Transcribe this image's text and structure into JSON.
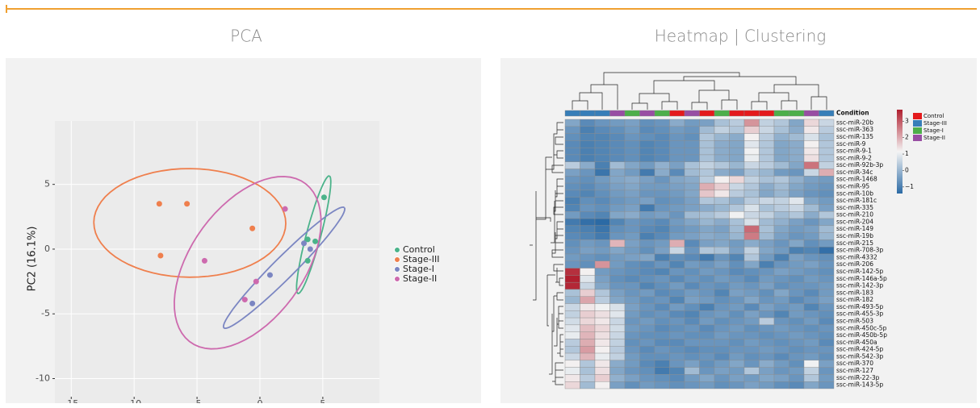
{
  "chart_data": [
    {
      "type": "scatter",
      "title": "PCA",
      "ylabel": "PC2 (16.1%)",
      "xlim": [
        -16.3,
        9.5
      ],
      "ylim": [
        -11.4,
        9.9
      ],
      "xticks": [
        -15,
        -10,
        -5,
        0,
        5
      ],
      "yticks": [
        -10,
        -5,
        0,
        5
      ],
      "grid": true,
      "legend": "right",
      "series": [
        {
          "name": "Control",
          "color": "#4bb38a",
          "x": [
            5.1,
            3.8,
            3.8,
            4.4
          ],
          "values": [
            4.0,
            -0.9,
            0.75,
            0.6
          ]
        },
        {
          "name": "Stage-III",
          "color": "#ef7f4d",
          "x": [
            -8.0,
            -5.8,
            -7.9,
            -0.6
          ],
          "values": [
            3.5,
            3.5,
            -0.5,
            1.6
          ]
        },
        {
          "name": "Stage-I",
          "color": "#7b86c2",
          "x": [
            3.5,
            4.0,
            0.8,
            -0.6
          ],
          "values": [
            0.45,
            0.0,
            -2.0,
            -4.2
          ]
        },
        {
          "name": "Stage-II",
          "color": "#cd6aae",
          "x": [
            2.0,
            -4.4,
            -0.3,
            -1.2
          ],
          "values": [
            3.1,
            -0.9,
            -2.5,
            -3.9
          ]
        }
      ]
    },
    {
      "type": "heatmap",
      "title": "Heatmap | Clustering",
      "annotation_title": "Condition",
      "conditions": [
        {
          "name": "Control",
          "color": "#e41a1c"
        },
        {
          "name": "Stage-III",
          "color": "#377eb8"
        },
        {
          "name": "Stage-I",
          "color": "#4daf4a"
        },
        {
          "name": "Stage-II",
          "color": "#984ea3"
        }
      ],
      "column_conditions": [
        "Stage-III",
        "Stage-III",
        "Stage-III",
        "Stage-II",
        "Stage-I",
        "Stage-II",
        "Stage-I",
        "Control",
        "Stage-II",
        "Control",
        "Stage-I",
        "Control",
        "Control",
        "Control",
        "Stage-I",
        "Stage-I",
        "Stage-II",
        "Stage-III"
      ],
      "colorscale": {
        "range": [
          -1.4,
          3.7
        ],
        "colors": [
          "#2b6aa5",
          "#f4f4f4",
          "#b01f2f"
        ]
      },
      "legend_ticks": [
        3,
        2,
        1,
        0,
        {
          "value": -1,
          "label": "−1"
        }
      ],
      "rows": [
        "ssc-miR-20b",
        "ssc-miR-363",
        "ssc-miR-135",
        "ssc-miR-9",
        "ssc-miR-9-1",
        "ssc-miR-9-2",
        "ssc-miR-92b-3p",
        "ssc-miR-34c",
        "ssc-miR-1468",
        "ssc-miR-95",
        "ssc-miR-10b",
        "ssc-miR-181c",
        "ssc-miR-335",
        "ssc-miR-210",
        "ssc-miR-204",
        "ssc-miR-149",
        "ssc-miR-19b",
        "ssc-miR-215",
        "ssc-miR-708-3p",
        "ssc-miR-4332",
        "ssc-miR-206",
        "ssc-miR-142-5p",
        "ssc-miR-146a-5p",
        "ssc-miR-142-3p",
        "ssc-miR-183",
        "ssc-miR-182",
        "ssc-miR-493-5p",
        "ssc-miR-455-3p",
        "ssc-miR-503",
        "ssc-miR-450c-5p",
        "ssc-miR-450b-5p",
        "ssc-miR-450a",
        "ssc-miR-424-5p",
        "ssc-miR-542-3p",
        "ssc-miR-370",
        "ssc-miR-127",
        "ssc-miR-22-3p",
        "ssc-miR-143-5p"
      ],
      "values": [
        [
          -0.3,
          -0.8,
          -0.6,
          -0.5,
          -0.4,
          -0.7,
          -0.6,
          -0.2,
          -0.5,
          -0.4,
          0.2,
          0.4,
          2.3,
          0.5,
          0.3,
          -0.3,
          1.5,
          0.6
        ],
        [
          -0.6,
          -1.0,
          -0.8,
          -0.7,
          -0.5,
          -0.8,
          -0.7,
          -0.5,
          -0.6,
          0.1,
          0.5,
          0.3,
          1.6,
          0.6,
          0.2,
          -0.2,
          1.3,
          0.4
        ],
        [
          -0.7,
          -0.9,
          -0.9,
          -0.8,
          -0.6,
          -0.7,
          -0.8,
          -0.6,
          -0.7,
          0.3,
          0.0,
          -0.2,
          1.2,
          0.4,
          -0.1,
          0.1,
          0.8,
          0.2
        ],
        [
          -0.8,
          -1.0,
          -0.9,
          -0.8,
          -0.7,
          -0.9,
          -0.8,
          -0.6,
          -0.6,
          0.2,
          -0.2,
          -0.3,
          0.9,
          0.3,
          -0.3,
          -0.2,
          1.2,
          0.3
        ],
        [
          -0.8,
          -1.0,
          -0.9,
          -0.8,
          -0.7,
          -0.9,
          -0.8,
          -0.6,
          -0.6,
          0.2,
          -0.2,
          -0.3,
          1.1,
          0.3,
          -0.3,
          -0.2,
          1.3,
          0.3
        ],
        [
          -0.8,
          -1.0,
          -0.9,
          -0.8,
          -0.7,
          -0.9,
          -0.8,
          -0.6,
          -0.6,
          0.2,
          -0.2,
          -0.3,
          1.0,
          0.3,
          -0.3,
          -0.2,
          1.4,
          0.3
        ],
        [
          0.4,
          -0.2,
          -1.0,
          0.1,
          -0.3,
          -0.5,
          -0.1,
          -0.4,
          0.2,
          0.5,
          0.3,
          0.0,
          0.6,
          0.4,
          0.1,
          -0.3,
          2.7,
          0.5
        ],
        [
          -0.4,
          -0.6,
          -1.2,
          -0.3,
          -0.5,
          -1.1,
          -0.2,
          -0.8,
          0.1,
          0.3,
          -0.2,
          -0.4,
          0.2,
          0.0,
          -0.5,
          -0.6,
          0.6,
          2.0
        ],
        [
          -0.6,
          -0.7,
          -0.5,
          -0.3,
          -0.2,
          -0.4,
          -0.6,
          -0.3,
          -0.2,
          0.4,
          1.2,
          1.5,
          0.5,
          0.2,
          0.3,
          -0.1,
          -0.4,
          -0.5
        ],
        [
          -0.7,
          -0.8,
          -0.6,
          -0.4,
          -0.3,
          -0.5,
          -0.5,
          -0.4,
          -0.3,
          2.0,
          1.6,
          0.6,
          0.3,
          -0.2,
          0.1,
          -0.3,
          -0.5,
          -0.6
        ],
        [
          -0.8,
          -0.9,
          -0.7,
          -0.5,
          -0.4,
          -0.6,
          -0.6,
          -0.5,
          -0.3,
          1.7,
          1.3,
          0.4,
          0.2,
          -0.3,
          0.0,
          -0.4,
          -0.6,
          -0.7
        ],
        [
          -1.0,
          -0.7,
          -0.8,
          -0.6,
          -0.5,
          -0.4,
          -0.7,
          -0.6,
          -0.4,
          0.3,
          0.2,
          -0.1,
          0.4,
          0.6,
          0.5,
          0.9,
          -0.3,
          -0.5
        ],
        [
          -0.9,
          -0.6,
          -0.7,
          -0.5,
          -0.4,
          -1.1,
          -0.6,
          -0.5,
          -0.4,
          -0.2,
          0.0,
          0.3,
          0.8,
          0.2,
          0.4,
          0.6,
          0.1,
          -0.4
        ],
        [
          -0.5,
          -0.8,
          -0.9,
          -0.3,
          -0.2,
          -0.5,
          -0.4,
          -0.6,
          0.1,
          0.2,
          0.4,
          1.1,
          0.6,
          0.5,
          0.1,
          0.3,
          -0.2,
          0.3
        ],
        [
          -1.1,
          -1.3,
          -1.4,
          -0.9,
          -0.6,
          -0.7,
          -0.8,
          -0.5,
          -0.3,
          0.0,
          -0.2,
          0.2,
          0.8,
          0.1,
          -0.1,
          -0.4,
          -0.6,
          -0.3
        ],
        [
          -0.9,
          -1.0,
          -1.2,
          -0.7,
          -0.6,
          -0.8,
          -0.9,
          -0.6,
          -0.5,
          -0.3,
          -0.4,
          0.1,
          2.8,
          0.2,
          -0.3,
          -0.5,
          -0.4,
          0.1
        ],
        [
          -0.8,
          -0.9,
          -1.1,
          -0.6,
          -0.5,
          -1.0,
          -0.8,
          -0.5,
          -0.4,
          -0.2,
          -0.3,
          0.0,
          2.6,
          0.1,
          -0.4,
          -0.6,
          -0.5,
          0.0
        ],
        [
          -0.7,
          -0.5,
          -0.6,
          1.9,
          -0.4,
          -0.6,
          -0.5,
          2.0,
          -0.8,
          -0.4,
          -0.3,
          -0.5,
          -0.2,
          -0.4,
          -0.6,
          -0.3,
          -0.7,
          -0.5
        ],
        [
          -0.6,
          -0.4,
          -0.5,
          -0.3,
          -0.5,
          -0.7,
          -0.4,
          0.6,
          -0.6,
          0.3,
          0.2,
          -0.4,
          0.5,
          -0.3,
          -0.5,
          -1.0,
          -0.9,
          -1.3
        ],
        [
          -0.5,
          -0.6,
          -0.7,
          -0.5,
          -0.4,
          -0.3,
          -1.0,
          -0.7,
          -0.8,
          -1.1,
          -0.6,
          -0.9,
          0.3,
          -0.5,
          -1.0,
          -0.4,
          -0.6,
          -0.7
        ],
        [
          -0.6,
          -0.7,
          2.3,
          -0.5,
          -0.7,
          -0.8,
          -0.6,
          -0.9,
          -0.5,
          -0.6,
          -0.4,
          -0.7,
          -0.3,
          -1.0,
          -0.6,
          -0.5,
          -0.4,
          -0.6
        ],
        [
          3.5,
          1.2,
          -0.5,
          -0.6,
          -0.7,
          -0.8,
          -0.9,
          -0.6,
          -0.7,
          -0.5,
          -0.6,
          -0.8,
          -0.7,
          -0.6,
          -0.4,
          -0.5,
          -0.6,
          -0.7
        ],
        [
          3.7,
          0.9,
          -0.4,
          -0.7,
          -0.8,
          -0.7,
          -0.6,
          -0.8,
          -0.6,
          -0.7,
          -0.5,
          -0.6,
          -0.8,
          -0.5,
          -0.6,
          -0.7,
          -0.5,
          -0.6
        ],
        [
          3.6,
          0.6,
          -0.3,
          -0.6,
          -0.6,
          -0.9,
          -0.7,
          -0.5,
          -0.8,
          -0.6,
          -0.7,
          -0.5,
          -0.6,
          -0.4,
          -0.7,
          -0.6,
          -0.6,
          -0.5
        ],
        [
          0.2,
          1.6,
          0.3,
          -0.4,
          -0.6,
          -0.5,
          -0.8,
          -0.7,
          -0.5,
          -0.6,
          -0.9,
          -0.4,
          -0.5,
          -0.7,
          -0.3,
          -0.6,
          -0.8,
          -0.5
        ],
        [
          0.0,
          2.1,
          0.4,
          -0.3,
          -0.5,
          -0.7,
          -0.6,
          -0.9,
          -0.4,
          -0.5,
          -0.7,
          -0.6,
          -0.3,
          -0.6,
          -0.5,
          -0.8,
          -0.6,
          -0.4
        ],
        [
          0.6,
          1.3,
          1.1,
          0.8,
          -0.4,
          -0.6,
          -0.8,
          -0.5,
          -0.7,
          -1.0,
          -0.6,
          -0.5,
          -0.8,
          -0.4,
          -0.6,
          -0.5,
          -0.9,
          -0.6
        ],
        [
          0.5,
          1.6,
          1.4,
          0.9,
          -0.5,
          -0.7,
          -0.6,
          -0.8,
          -0.9,
          -0.6,
          -0.5,
          -0.7,
          -0.4,
          -0.6,
          -0.9,
          -0.5,
          -0.6,
          -0.7
        ],
        [
          0.7,
          1.5,
          1.3,
          0.6,
          -0.6,
          -0.5,
          -0.7,
          -0.6,
          -0.8,
          -0.5,
          -0.7,
          -0.6,
          -0.5,
          0.4,
          -0.6,
          -0.7,
          -0.5,
          -0.8
        ],
        [
          0.9,
          1.8,
          1.5,
          0.7,
          -0.5,
          -0.6,
          -0.8,
          -0.7,
          -0.6,
          -0.8,
          -0.6,
          -0.5,
          -0.7,
          -0.6,
          -0.5,
          -0.6,
          -0.7,
          -0.6
        ],
        [
          1.0,
          1.9,
          1.4,
          0.6,
          -0.6,
          -0.7,
          -0.7,
          -0.6,
          -0.7,
          -0.7,
          -0.5,
          -0.6,
          -0.6,
          -0.7,
          -0.6,
          -0.5,
          -0.6,
          -0.7
        ],
        [
          0.4,
          2.0,
          1.3,
          0.5,
          -0.7,
          -0.6,
          -0.8,
          -0.8,
          -0.6,
          -0.6,
          -0.6,
          -0.7,
          -0.5,
          -0.6,
          -0.7,
          -0.6,
          -0.5,
          -0.8
        ],
        [
          0.3,
          2.2,
          1.2,
          0.4,
          -0.6,
          -0.8,
          -0.6,
          -0.7,
          -0.8,
          -0.7,
          -0.7,
          -0.6,
          -0.6,
          -0.5,
          -0.6,
          -0.7,
          -0.6,
          -0.6
        ],
        [
          0.6,
          1.9,
          1.0,
          0.5,
          -0.5,
          -0.7,
          -0.7,
          -0.6,
          -0.7,
          -0.6,
          -0.8,
          -0.5,
          -0.7,
          -0.6,
          -0.8,
          -0.6,
          -0.5,
          -0.7
        ],
        [
          1.2,
          0.3,
          1.3,
          -0.2,
          -0.5,
          -0.8,
          -1.0,
          -0.6,
          -0.4,
          -0.7,
          -0.5,
          -0.3,
          -0.6,
          -0.2,
          -0.5,
          -0.7,
          1.1,
          -0.4
        ],
        [
          1.0,
          0.2,
          1.4,
          -0.3,
          -0.6,
          -0.7,
          -1.1,
          -0.9,
          0.1,
          -0.6,
          -0.4,
          -0.5,
          0.3,
          -0.4,
          -0.6,
          -0.5,
          0.5,
          -0.6
        ],
        [
          1.3,
          0.4,
          1.6,
          -0.1,
          -0.4,
          -0.6,
          -0.7,
          -0.8,
          -0.5,
          -0.3,
          -0.6,
          -0.4,
          -0.5,
          -0.3,
          -0.4,
          -0.6,
          0.3,
          -0.5
        ],
        [
          1.5,
          0.1,
          1.2,
          -0.4,
          -0.7,
          -0.5,
          -0.6,
          -0.7,
          -0.6,
          -0.5,
          -0.7,
          -0.6,
          -0.4,
          -0.5,
          -0.7,
          -0.8,
          -0.3,
          -0.6
        ]
      ]
    }
  ]
}
